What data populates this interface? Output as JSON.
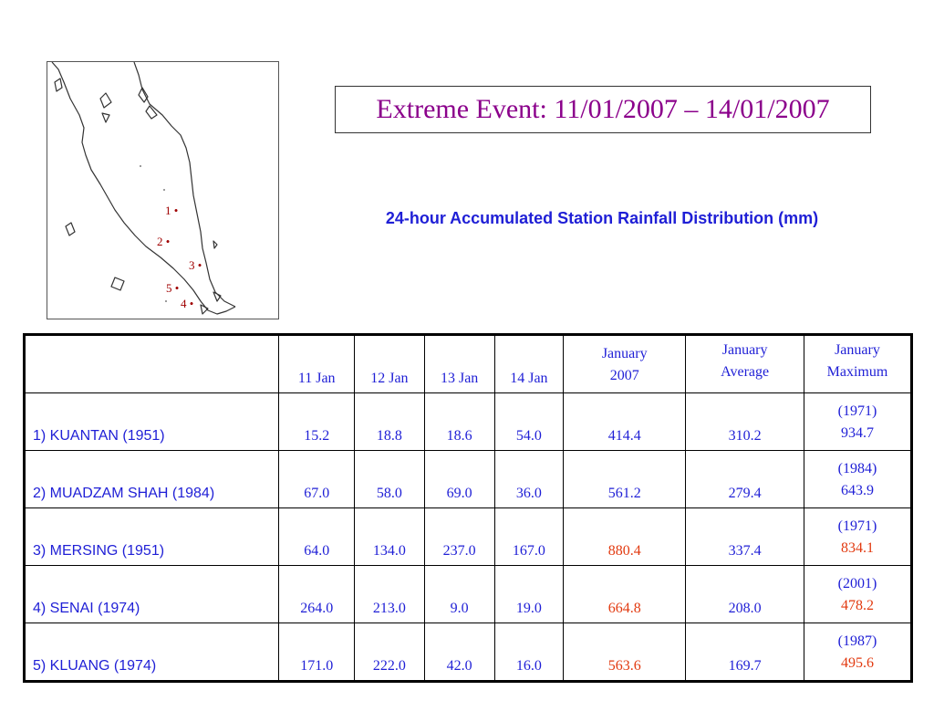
{
  "title": "Extreme Event: 11/01/2007 – 14/01/2007",
  "subtitle": "24-hour Accumulated Station Rainfall Distribution (mm)",
  "map": {
    "stations": [
      "1",
      "2",
      "3",
      "4",
      "5"
    ]
  },
  "table": {
    "headers": {
      "station": "",
      "d1": "11 Jan",
      "d2": "12 Jan",
      "d3": "13 Jan",
      "d4": "14 Jan",
      "jan2007": [
        "January",
        "2007"
      ],
      "janavg": [
        "January",
        "Average"
      ],
      "janmax": [
        "January",
        "Maximum"
      ]
    },
    "rows": [
      {
        "station": "1) KUANTAN  (1951)",
        "d1": "15.2",
        "d2": "18.8",
        "d3": "18.6",
        "d4": "54.0",
        "jan2007": "414.4",
        "jan2007_highlight": false,
        "avg": "310.2",
        "max_year": "(1971)",
        "max": "934.7",
        "max_highlight": false
      },
      {
        "station": "2) MUADZAM SHAH  (1984)",
        "d1": "67.0",
        "d2": "58.0",
        "d3": "69.0",
        "d4": "36.0",
        "jan2007": "561.2",
        "jan2007_highlight": false,
        "avg": "279.4",
        "max_year": "(1984)",
        "max": "643.9",
        "max_highlight": false
      },
      {
        "station": "3) MERSING  (1951)",
        "d1": "64.0",
        "d2": "134.0",
        "d3": "237.0",
        "d4": "167.0",
        "jan2007": "880.4",
        "jan2007_highlight": true,
        "avg": "337.4",
        "max_year": "(1971)",
        "max": "834.1",
        "max_highlight": true
      },
      {
        "station": "4) SENAI  (1974)",
        "d1": "264.0",
        "d2": "213.0",
        "d3": "9.0",
        "d4": "19.0",
        "jan2007": "664.8",
        "jan2007_highlight": true,
        "avg": "208.0",
        "max_year": "(2001)",
        "max": "478.2",
        "max_highlight": true
      },
      {
        "station": "5) KLUANG  (1974)",
        "d1": "171.0",
        "d2": "222.0",
        "d3": "42.0",
        "d4": "16.0",
        "jan2007": "563.6",
        "jan2007_highlight": true,
        "avg": "169.7",
        "max_year": "(1987)",
        "max": "495.6",
        "max_highlight": true
      }
    ]
  },
  "colors": {
    "title": "#8b008b",
    "text": "#1f1fd6",
    "highlight": "#e23a10",
    "station_marker": "#a00000"
  }
}
